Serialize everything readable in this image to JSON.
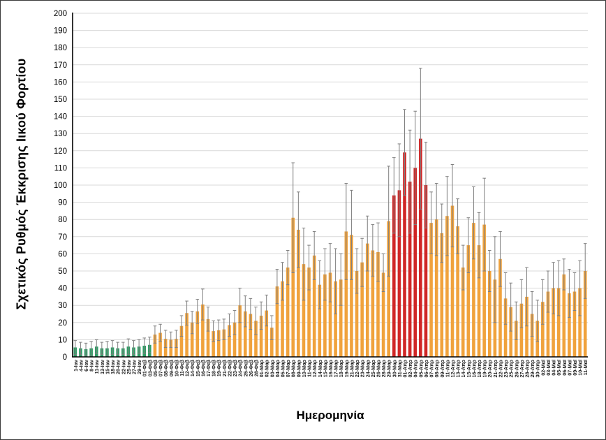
{
  "chart_data": {
    "type": "bar",
    "title": "",
    "xlabel": "Ημερομηνία",
    "ylabel": "Σχετικός Ρυθμός Έκκρισης Ιικού Φορτίου",
    "ylim": [
      0,
      200
    ],
    "ytick_step": 10,
    "grid": true,
    "legend": "none",
    "error_bars": true,
    "colors": {
      "green": "#2f9e66",
      "orange": "#f0a23c",
      "red": "#d02626",
      "error": "#7f7f7f",
      "gridline": "#d9d9d9",
      "axis": "#000000"
    },
    "bars": [
      {
        "date": "1-Ιαν",
        "value": 5.5,
        "err": 4,
        "color": "green"
      },
      {
        "date": "4-Ιαν",
        "value": 5,
        "err": 3.5,
        "color": "green"
      },
      {
        "date": "6-Ιαν",
        "value": 4.5,
        "err": 3.5,
        "color": "green"
      },
      {
        "date": "8-Ιαν",
        "value": 5,
        "err": 4,
        "color": "green"
      },
      {
        "date": "11-Ιαν",
        "value": 6,
        "err": 4,
        "color": "green"
      },
      {
        "date": "13-Ιαν",
        "value": 5,
        "err": 3.5,
        "color": "green"
      },
      {
        "date": "15-Ιαν",
        "value": 5,
        "err": 4,
        "color": "green"
      },
      {
        "date": "18-Ιαν",
        "value": 5.5,
        "err": 4,
        "color": "green"
      },
      {
        "date": "20-Ιαν",
        "value": 5,
        "err": 3.5,
        "color": "green"
      },
      {
        "date": "22-Ιαν",
        "value": 5,
        "err": 3.5,
        "color": "green"
      },
      {
        "date": "25-Ιαν",
        "value": 6,
        "err": 4.5,
        "color": "green"
      },
      {
        "date": "27-Ιαν",
        "value": 5.5,
        "err": 4,
        "color": "green"
      },
      {
        "date": "29-Ιαν",
        "value": 6,
        "err": 4,
        "color": "green"
      },
      {
        "date": "01-Φεβ",
        "value": 6.5,
        "err": 4.5,
        "color": "green"
      },
      {
        "date": "03-Φεβ",
        "value": 7,
        "err": 4.5,
        "color": "green"
      },
      {
        "date": "05-Φεβ",
        "value": 13,
        "err": 5,
        "color": "orange"
      },
      {
        "date": "07-Φεβ",
        "value": 14,
        "err": 5,
        "color": "orange"
      },
      {
        "date": "08-Φεβ",
        "value": 10.5,
        "err": 5,
        "color": "orange"
      },
      {
        "date": "09-Φεβ",
        "value": 10,
        "err": 4.5,
        "color": "orange"
      },
      {
        "date": "10-Φεβ",
        "value": 10.5,
        "err": 5,
        "color": "orange"
      },
      {
        "date": "11-Φεβ",
        "value": 18,
        "err": 6,
        "color": "orange"
      },
      {
        "date": "12-Φεβ",
        "value": 25.5,
        "err": 7,
        "color": "orange"
      },
      {
        "date": "14-Φεβ",
        "value": 20,
        "err": 6.5,
        "color": "orange"
      },
      {
        "date": "15-Φεβ",
        "value": 26.5,
        "err": 7,
        "color": "orange"
      },
      {
        "date": "16-Φεβ",
        "value": 30.5,
        "err": 9,
        "color": "orange"
      },
      {
        "date": "17-Φεβ",
        "value": 22,
        "err": 7,
        "color": "orange"
      },
      {
        "date": "18-Φεβ",
        "value": 15,
        "err": 6,
        "color": "orange"
      },
      {
        "date": "19-Φεβ",
        "value": 15.5,
        "err": 6,
        "color": "orange"
      },
      {
        "date": "21-Φεβ",
        "value": 16,
        "err": 6,
        "color": "orange"
      },
      {
        "date": "22-Φεβ",
        "value": 18.5,
        "err": 6.5,
        "color": "orange"
      },
      {
        "date": "23-Φεβ",
        "value": 20,
        "err": 7,
        "color": "orange"
      },
      {
        "date": "24-Φεβ",
        "value": 30,
        "err": 10,
        "color": "orange"
      },
      {
        "date": "25-Φεβ",
        "value": 26.5,
        "err": 9,
        "color": "orange"
      },
      {
        "date": "26-Φεβ",
        "value": 25,
        "err": 9,
        "color": "orange"
      },
      {
        "date": "28-Φεβ",
        "value": 21,
        "err": 8,
        "color": "orange"
      },
      {
        "date": "01-Μαρ",
        "value": 24,
        "err": 8,
        "color": "orange"
      },
      {
        "date": "02-Μαρ",
        "value": 27,
        "err": 9,
        "color": "orange"
      },
      {
        "date": "03-Μαρ",
        "value": 17,
        "err": 7,
        "color": "orange"
      },
      {
        "date": "04-Μαρ",
        "value": 41,
        "err": 10,
        "color": "orange"
      },
      {
        "date": "05-Μαρ",
        "value": 44,
        "err": 11,
        "color": "orange"
      },
      {
        "date": "07-Μαρ",
        "value": 52,
        "err": 10,
        "color": "orange"
      },
      {
        "date": "08-Μαρ",
        "value": 81,
        "err": 32,
        "color": "orange"
      },
      {
        "date": "09-Μαρ",
        "value": 74,
        "err": 22,
        "color": "orange"
      },
      {
        "date": "10-Μαρ",
        "value": 54,
        "err": 21,
        "color": "orange"
      },
      {
        "date": "11-Μαρ",
        "value": 52,
        "err": 13,
        "color": "orange"
      },
      {
        "date": "12-Μαρ",
        "value": 59,
        "err": 14,
        "color": "orange"
      },
      {
        "date": "14-Μαρ",
        "value": 42,
        "err": 14,
        "color": "orange"
      },
      {
        "date": "15-Μαρ",
        "value": 48,
        "err": 15,
        "color": "orange"
      },
      {
        "date": "16-Μαρ",
        "value": 49,
        "err": 17,
        "color": "orange"
      },
      {
        "date": "17-Μαρ",
        "value": 44,
        "err": 19,
        "color": "orange"
      },
      {
        "date": "18-Μαρ",
        "value": 45,
        "err": 15,
        "color": "orange"
      },
      {
        "date": "19-Μαρ",
        "value": 73,
        "err": 28,
        "color": "orange"
      },
      {
        "date": "21-Μαρ",
        "value": 71,
        "err": 26,
        "color": "orange"
      },
      {
        "date": "22-Μαρ",
        "value": 50,
        "err": 13,
        "color": "orange"
      },
      {
        "date": "23-Μαρ",
        "value": 55,
        "err": 14,
        "color": "orange"
      },
      {
        "date": "24-Μαρ",
        "value": 66,
        "err": 16,
        "color": "orange"
      },
      {
        "date": "25-Μαρ",
        "value": 62,
        "err": 15,
        "color": "orange"
      },
      {
        "date": "26-Μαρ",
        "value": 61,
        "err": 17,
        "color": "orange"
      },
      {
        "date": "28-Μαρ",
        "value": 49,
        "err": 11,
        "color": "orange"
      },
      {
        "date": "29-Μαρ",
        "value": 79,
        "err": 32,
        "color": "orange"
      },
      {
        "date": "30-Μαρ",
        "value": 94,
        "err": 22,
        "color": "red"
      },
      {
        "date": "31-Μαρ",
        "value": 97,
        "err": 27,
        "color": "red"
      },
      {
        "date": "01-Απρ",
        "value": 119,
        "err": 25,
        "color": "red"
      },
      {
        "date": "02-Απρ",
        "value": 102,
        "err": 30,
        "color": "red"
      },
      {
        "date": "04-Απρ",
        "value": 110,
        "err": 33,
        "color": "red"
      },
      {
        "date": "05-Απρ",
        "value": 127,
        "err": 41,
        "color": "red"
      },
      {
        "date": "06-Απρ",
        "value": 100,
        "err": 25,
        "color": "red"
      },
      {
        "date": "07-Απρ",
        "value": 78,
        "err": 18,
        "color": "orange"
      },
      {
        "date": "08-Απρ",
        "value": 80,
        "err": 21,
        "color": "orange"
      },
      {
        "date": "09-Απρ",
        "value": 72,
        "err": 17,
        "color": "orange"
      },
      {
        "date": "11-Απρ",
        "value": 82,
        "err": 23,
        "color": "orange"
      },
      {
        "date": "12-Απρ",
        "value": 88,
        "err": 24,
        "color": "orange"
      },
      {
        "date": "13-Απρ",
        "value": 76,
        "err": 16,
        "color": "orange"
      },
      {
        "date": "14-Απρ",
        "value": 52,
        "err": 13,
        "color": "orange"
      },
      {
        "date": "15-Απρ",
        "value": 65,
        "err": 16,
        "color": "orange"
      },
      {
        "date": "16-Απρ",
        "value": 78,
        "err": 21,
        "color": "orange"
      },
      {
        "date": "18-Απρ",
        "value": 65,
        "err": 19,
        "color": "orange"
      },
      {
        "date": "19-Απρ",
        "value": 77,
        "err": 27,
        "color": "orange"
      },
      {
        "date": "20-Απρ",
        "value": 50,
        "err": 12,
        "color": "orange"
      },
      {
        "date": "21-Απρ",
        "value": 45,
        "err": 25,
        "color": "orange"
      },
      {
        "date": "22-Απρ",
        "value": 57,
        "err": 16,
        "color": "orange"
      },
      {
        "date": "23-Απρ",
        "value": 34,
        "err": 15,
        "color": "orange"
      },
      {
        "date": "25-Απρ",
        "value": 29,
        "err": 14,
        "color": "orange"
      },
      {
        "date": "26-Απρ",
        "value": 21,
        "err": 11,
        "color": "orange"
      },
      {
        "date": "27-Απρ",
        "value": 31,
        "err": 14,
        "color": "orange"
      },
      {
        "date": "28-Απρ",
        "value": 35,
        "err": 17,
        "color": "orange"
      },
      {
        "date": "29-Απρ",
        "value": 25,
        "err": 13,
        "color": "orange"
      },
      {
        "date": "30-Απρ",
        "value": 21,
        "err": 12,
        "color": "orange"
      },
      {
        "date": "02-Μαϊ",
        "value": 32,
        "err": 13,
        "color": "orange"
      },
      {
        "date": "03-Μαϊ",
        "value": 38,
        "err": 12,
        "color": "orange"
      },
      {
        "date": "04-Μαϊ",
        "value": 40,
        "err": 15,
        "color": "orange"
      },
      {
        "date": "05-Μαϊ",
        "value": 40,
        "err": 16,
        "color": "orange"
      },
      {
        "date": "06-Μαϊ",
        "value": 48,
        "err": 9,
        "color": "orange"
      },
      {
        "date": "07-Μαϊ",
        "value": 37,
        "err": 14,
        "color": "orange"
      },
      {
        "date": "09-Μαϊ",
        "value": 38,
        "err": 11,
        "color": "orange"
      },
      {
        "date": "10-Μαϊ",
        "value": 40,
        "err": 16,
        "color": "orange"
      },
      {
        "date": "11-Μαϊ",
        "value": 50,
        "err": 16,
        "color": "orange"
      }
    ]
  }
}
